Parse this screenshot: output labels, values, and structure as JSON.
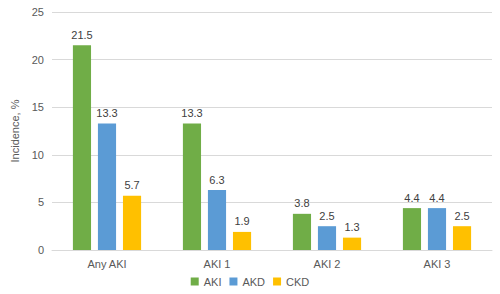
{
  "chart_data": {
    "type": "bar",
    "y_label": "Incidence, %",
    "categories": [
      "Any AKI",
      "AKI 1",
      "AKI 2",
      "AKI 3"
    ],
    "series": [
      {
        "name": "AKI",
        "color": "#70ad47",
        "values": [
          21.5,
          13.3,
          3.8,
          4.4
        ]
      },
      {
        "name": "AKD",
        "color": "#5b9bd5",
        "values": [
          13.3,
          6.3,
          2.5,
          4.4
        ]
      },
      {
        "name": "CKD",
        "color": "#ffc000",
        "values": [
          5.7,
          1.9,
          1.3,
          2.5
        ]
      }
    ],
    "ylim": [
      0,
      25
    ],
    "yticks": [
      0,
      5,
      10,
      15,
      20,
      25
    ],
    "grid": true,
    "legend": "bottom",
    "data_labels": true
  }
}
